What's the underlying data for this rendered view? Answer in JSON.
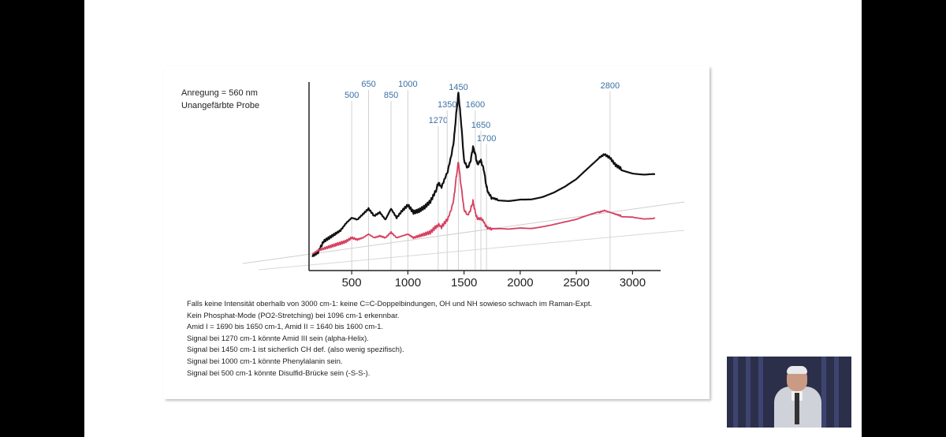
{
  "slide": {
    "caption_lines": [
      "Anregung = 560 nm",
      "Unangefärbte Probe"
    ],
    "notes": [
      "Falls keine Intensität oberhalb von 3000 cm-1: keine C=C-Doppelbindungen, OH und NH sowieso schwach im Raman-Expt.",
      "Kein Phosphat-Mode (PO2-Stretching) bei 1096 cm-1 erkennbar.",
      "Amid I = 1690 bis 1650 cm-1, Amid II = 1640 bis 1600 cm-1.",
      "Signal bei 1270 cm-1 könnte Amid III sein (alpha-Helix).",
      "Signal bei 1450 cm-1 ist sicherlich CH def. (also wenig spezifisch).",
      "Signal bei 1000 cm-1 könnte Phenylalanin sein.",
      "Signal bei 500 cm-1 könnte Disulfid-Brücke sein (-S-S-)."
    ]
  },
  "chart_data": {
    "type": "line",
    "xlim": [
      120,
      3250
    ],
    "xticks": [
      "500",
      "1000",
      "1500",
      "2000",
      "2500",
      "3000"
    ],
    "xtick_values": [
      500,
      1000,
      1500,
      2000,
      2500,
      3000
    ],
    "peak_labels": [
      {
        "text": "500",
        "x": 500
      },
      {
        "text": "650",
        "x": 650
      },
      {
        "text": "850",
        "x": 850
      },
      {
        "text": "1000",
        "x": 1000
      },
      {
        "text": "1270",
        "x": 1270
      },
      {
        "text": "1350",
        "x": 1350
      },
      {
        "text": "1450",
        "x": 1450
      },
      {
        "text": "1600",
        "x": 1600
      },
      {
        "text": "1650",
        "x": 1650
      },
      {
        "text": "1700",
        "x": 1700
      },
      {
        "text": "2800",
        "x": 2800
      }
    ],
    "series": [
      {
        "color": "#111111",
        "x": [
          150,
          200,
          250,
          300,
          350,
          400,
          450,
          500,
          550,
          600,
          650,
          700,
          750,
          800,
          850,
          900,
          950,
          1000,
          1050,
          1100,
          1150,
          1200,
          1250,
          1270,
          1300,
          1350,
          1380,
          1410,
          1430,
          1450,
          1470,
          1500,
          1530,
          1560,
          1580,
          1600,
          1620,
          1650,
          1680,
          1700,
          1720,
          1750,
          1800,
          1900,
          2000,
          2100,
          2200,
          2300,
          2400,
          2500,
          2600,
          2700,
          2750,
          2800,
          2850,
          2900,
          3000,
          3100,
          3200
        ],
        "y": [
          0.02,
          0.04,
          0.1,
          0.12,
          0.14,
          0.16,
          0.2,
          0.23,
          0.22,
          0.25,
          0.28,
          0.24,
          0.26,
          0.22,
          0.28,
          0.23,
          0.27,
          0.3,
          0.26,
          0.27,
          0.29,
          0.32,
          0.38,
          0.42,
          0.4,
          0.48,
          0.55,
          0.66,
          0.8,
          0.92,
          0.78,
          0.55,
          0.5,
          0.55,
          0.62,
          0.58,
          0.52,
          0.55,
          0.48,
          0.4,
          0.36,
          0.34,
          0.33,
          0.33,
          0.34,
          0.34,
          0.35,
          0.37,
          0.4,
          0.44,
          0.5,
          0.56,
          0.58,
          0.56,
          0.52,
          0.5,
          0.48,
          0.47,
          0.47
        ]
      },
      {
        "color": "#d6405f",
        "x": [
          150,
          200,
          250,
          300,
          350,
          400,
          450,
          500,
          550,
          600,
          650,
          700,
          750,
          800,
          850,
          900,
          950,
          1000,
          1050,
          1100,
          1150,
          1200,
          1250,
          1270,
          1300,
          1350,
          1380,
          1410,
          1430,
          1450,
          1470,
          1500,
          1530,
          1560,
          1580,
          1600,
          1620,
          1650,
          1680,
          1700,
          1720,
          1750,
          1800,
          1900,
          2000,
          2100,
          2200,
          2300,
          2400,
          2500,
          2600,
          2700,
          2750,
          2800,
          2850,
          2900,
          3000,
          3100,
          3200
        ],
        "y": [
          0.03,
          0.05,
          0.06,
          0.07,
          0.08,
          0.09,
          0.1,
          0.12,
          0.11,
          0.12,
          0.14,
          0.12,
          0.13,
          0.12,
          0.15,
          0.12,
          0.13,
          0.14,
          0.12,
          0.13,
          0.14,
          0.15,
          0.18,
          0.19,
          0.18,
          0.22,
          0.26,
          0.34,
          0.45,
          0.54,
          0.42,
          0.28,
          0.24,
          0.28,
          0.32,
          0.26,
          0.22,
          0.23,
          0.2,
          0.18,
          0.17,
          0.17,
          0.17,
          0.17,
          0.18,
          0.18,
          0.19,
          0.2,
          0.21,
          0.22,
          0.24,
          0.26,
          0.27,
          0.26,
          0.25,
          0.24,
          0.24,
          0.23,
          0.23
        ]
      }
    ]
  }
}
